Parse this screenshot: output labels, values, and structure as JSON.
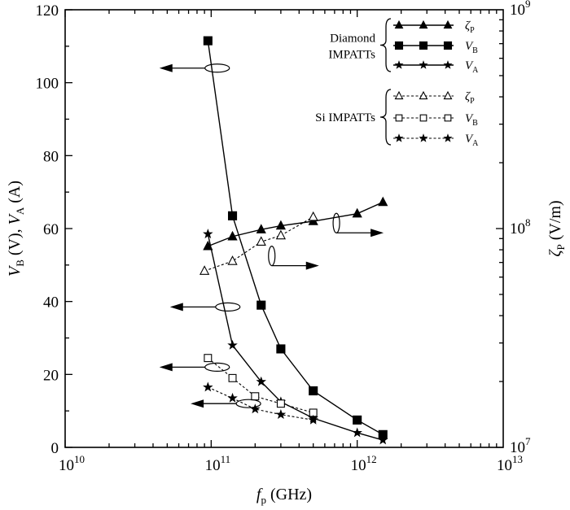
{
  "chart_data": {
    "type": "line",
    "x_axis": {
      "scale": "log",
      "range": [
        10000000000.0,
        10000000000000.0
      ],
      "ticks": [
        10000000000.0,
        100000000000.0,
        1000000000000.0,
        10000000000000.0
      ],
      "tick_labels": [
        {
          "base": "10",
          "exp": "10"
        },
        {
          "base": "10",
          "exp": "11"
        },
        {
          "base": "10",
          "exp": "12"
        },
        {
          "base": "10",
          "exp": "13"
        }
      ],
      "label": {
        "main": "f",
        "sub": "p",
        "unit": " (GHz)"
      }
    },
    "y_left": {
      "scale": "linear",
      "range": [
        0,
        120
      ],
      "ticks": [
        0,
        20,
        40,
        60,
        80,
        100,
        120
      ],
      "tick_labels": [
        "0",
        "20",
        "40",
        "60",
        "80",
        "100",
        "120"
      ],
      "label": {
        "v1": "V",
        "s1": "B",
        "u1": " (V), ",
        "v2": "V",
        "s2": "A",
        "u2": " (A)"
      }
    },
    "y_right": {
      "scale": "log",
      "range": [
        10000000.0,
        1000000000.0
      ],
      "ticks": [
        10000000.0,
        100000000.0,
        1000000000.0
      ],
      "tick_labels": [
        {
          "base": "10",
          "exp": "7"
        },
        {
          "base": "10",
          "exp": "8"
        },
        {
          "base": "10",
          "exp": "9"
        }
      ],
      "label": {
        "v": "ζ",
        "s": "P",
        "u": " (V/m)"
      }
    },
    "legend_groups": [
      {
        "label_line1": "Diamond",
        "label_line2": "IMPATTs"
      },
      {
        "label_line1": "Si IMPATTs",
        "label_line2": ""
      }
    ],
    "series": [
      {
        "name": "ζ",
        "sub": "P",
        "group": 0,
        "axis": "right",
        "marker": "triangle",
        "filled": true,
        "dash": "solid",
        "x": [
          95000000000.0,
          140000000000.0,
          220000000000.0,
          300000000000.0,
          500000000000.0,
          1000000000000.0,
          1500000000000.0
        ],
        "y": [
          83000000.0,
          92000000.0,
          99000000.0,
          103000000.0,
          108000000.0,
          117000000.0,
          132000000.0
        ]
      },
      {
        "name": "V",
        "sub": "B",
        "group": 0,
        "axis": "left",
        "marker": "square",
        "filled": true,
        "dash": "solid",
        "x": [
          95000000000.0,
          140000000000.0,
          220000000000.0,
          300000000000.0,
          500000000000.0,
          1000000000000.0,
          1500000000000.0
        ],
        "y": [
          111.5,
          63.5,
          39,
          27,
          15.5,
          7.5,
          3.5
        ]
      },
      {
        "name": "V",
        "sub": "A",
        "group": 0,
        "axis": "left",
        "marker": "star",
        "filled": true,
        "dash": "solid",
        "x": [
          95000000000.0,
          140000000000.0,
          220000000000.0,
          300000000000.0,
          500000000000.0,
          1000000000000.0,
          1500000000000.0
        ],
        "y": [
          58.5,
          28,
          18,
          12.5,
          8,
          4,
          2
        ]
      },
      {
        "name": "ζ",
        "sub": "P",
        "group": 1,
        "axis": "right",
        "marker": "triangle",
        "filled": false,
        "dash": "dashed",
        "x": [
          90000000000.0,
          140000000000.0,
          220000000000.0,
          300000000000.0,
          500000000000.0
        ],
        "y": [
          64000000.0,
          71000000.0,
          87000000.0,
          93000000.0,
          113000000.0
        ]
      },
      {
        "name": "V",
        "sub": "B",
        "group": 1,
        "axis": "left",
        "marker": "square",
        "filled": false,
        "dash": "dashed",
        "x": [
          95000000000.0,
          140000000000.0,
          200000000000.0,
          300000000000.0,
          500000000000.0
        ],
        "y": [
          24.5,
          19,
          14,
          12,
          9.5
        ]
      },
      {
        "name": "V",
        "sub": "A",
        "group": 1,
        "axis": "left",
        "marker": "star",
        "filled": true,
        "dash": "dashed",
        "x": [
          95000000000.0,
          140000000000.0,
          200000000000.0,
          300000000000.0,
          500000000000.0
        ],
        "y": [
          16.5,
          13.5,
          10.5,
          9,
          7.5
        ]
      }
    ],
    "annotations": [
      {
        "target": "V_B diamond",
        "direction": "left",
        "at_x": 110000000000.0,
        "at_y": 104
      },
      {
        "target": "V_A diamond",
        "direction": "left",
        "at_x": 130000000000.0,
        "at_y": 38.5
      },
      {
        "target": "V_B Si",
        "direction": "left",
        "at_x": 110000000000.0,
        "at_y": 22
      },
      {
        "target": "V_A Si",
        "direction": "left",
        "at_x": 180000000000.0,
        "at_y": 12
      },
      {
        "target": "ζ_P diamond",
        "direction": "right",
        "at_x": 720000000000.0,
        "at_y": 61.5
      },
      {
        "target": "ζ_P Si",
        "direction": "right",
        "at_x": 260000000000.0,
        "at_y": 52.5
      }
    ],
    "grid": false,
    "legend_position": "top-right"
  }
}
